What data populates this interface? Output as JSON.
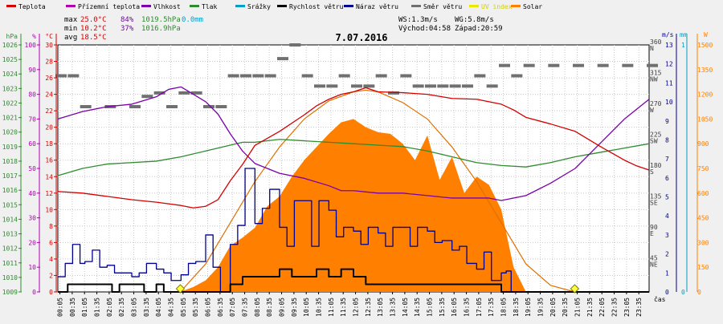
{
  "chart_data": {
    "type": "line",
    "title": "7.07.2016",
    "legend": [
      {
        "label": "Teplota",
        "color": "#d40000"
      },
      {
        "label": "Přízemní teplota",
        "color": "#b000b0"
      },
      {
        "label": "Vlhkost",
        "color": "#7a00aa"
      },
      {
        "label": "Tlak",
        "color": "#2e8b2e"
      },
      {
        "label": "Srážky",
        "color": "#00a0c8"
      },
      {
        "label": "Rychlost větru",
        "color": "#000000"
      },
      {
        "label": "Náraz větru",
        "color": "#000090"
      },
      {
        "label": "Směr větru",
        "color": "#707070"
      },
      {
        "label": "UV index",
        "color": "#e8e800"
      },
      {
        "label": "Solar",
        "color": "#ff8000"
      }
    ],
    "stats": {
      "max_label": "max",
      "max_temp": "25.0°C",
      "max_hum": "84%",
      "max_press": "1019.5hPa",
      "rain": "0.0mm",
      "min_label": "min",
      "min_temp": "10.2°C",
      "min_hum": "37%",
      "min_press": "1016.9hPa",
      "avg_label": "avg",
      "avg_temp": "18.5°C",
      "ws": "WS:1.3m/s",
      "wg": "WG:5.8m/s",
      "sunrise": "Východ:04:58",
      "sunset": "Západ:20:59"
    },
    "axes": {
      "hpa_unit": "hPa",
      "pct_unit": "%",
      "c_unit": "°C",
      "ms_unit": "m/s",
      "mm_unit": "mm",
      "w_unit": "W",
      "x_unit": "čas",
      "hpa_ticks": [
        "1009",
        "1010",
        "1011",
        "1012",
        "1013",
        "1014",
        "1015",
        "1016",
        "1017",
        "1018",
        "1019",
        "1020",
        "1021",
        "1022",
        "1023",
        "1024",
        "1025",
        "1026"
      ],
      "pct_ticks": [
        "0",
        "10",
        "20",
        "30",
        "40",
        "50",
        "60",
        "70",
        "80",
        "90",
        "100"
      ],
      "c_ticks": [
        "0",
        "2",
        "4",
        "6",
        "8",
        "10",
        "12",
        "14",
        "16",
        "18",
        "20",
        "22",
        "24",
        "26",
        "28",
        "30"
      ],
      "dir_ticks": [
        {
          "deg": "45",
          "name": "NE",
          "v": 45
        },
        {
          "deg": "90",
          "name": "E",
          "v": 90
        },
        {
          "deg": "135",
          "name": "SE",
          "v": 135
        },
        {
          "deg": "180",
          "name": "S",
          "v": 180
        },
        {
          "deg": "225",
          "name": "SW",
          "v": 225
        },
        {
          "deg": "270",
          "name": "W",
          "v": 270
        },
        {
          "deg": "315",
          "name": "NW",
          "v": 315
        },
        {
          "deg": "360",
          "name": "N",
          "v": 360
        }
      ],
      "ms_ticks": [
        "0",
        "1",
        "2",
        "3",
        "4",
        "5",
        "6",
        "7",
        "8",
        "9",
        "10",
        "11",
        "12",
        "13"
      ],
      "mm_ticks": [
        "0",
        "1"
      ],
      "w_ticks": [
        "0",
        "150",
        "300",
        "450",
        "600",
        "750",
        "900",
        "1050",
        "1200",
        "1350",
        "1500"
      ],
      "x_ticks": [
        "00:05",
        "00:35",
        "01:05",
        "01:35",
        "02:05",
        "02:35",
        "03:05",
        "03:35",
        "04:05",
        "04:35",
        "05:05",
        "05:35",
        "06:05",
        "06:35",
        "07:05",
        "07:35",
        "08:05",
        "08:35",
        "09:05",
        "09:35",
        "10:05",
        "10:35",
        "11:05",
        "11:35",
        "12:05",
        "12:35",
        "13:05",
        "13:35",
        "14:05",
        "14:35",
        "15:05",
        "15:35",
        "16:05",
        "16:35",
        "17:05",
        "17:35",
        "18:05",
        "18:35",
        "19:05",
        "19:35",
        "20:05",
        "20:35",
        "21:05",
        "21:35",
        "22:05",
        "22:35",
        "23:05",
        "23:35"
      ]
    },
    "series": {
      "temperature": {
        "name": "Teplota",
        "color": "#d40000",
        "x": [
          0,
          1,
          2,
          3,
          4,
          5,
          5.5,
          6,
          6.5,
          7,
          7.5,
          8,
          9,
          10,
          10.5,
          11,
          11.5,
          12,
          12.5,
          13,
          14,
          15,
          16,
          17,
          18,
          18.5,
          19,
          20,
          21,
          22,
          23,
          23.5,
          24
        ],
        "y": [
          12.2,
          12,
          11.6,
          11.2,
          10.9,
          10.5,
          10.2,
          10.4,
          11.2,
          13.5,
          15.5,
          17.8,
          19.5,
          21.5,
          22.6,
          23.4,
          24,
          24.3,
          24.8,
          24.3,
          24.2,
          24,
          23.5,
          23.4,
          22.8,
          22.1,
          21.2,
          20.4,
          19.5,
          17.7,
          16,
          15.3,
          14.8
        ]
      },
      "humidity": {
        "name": "Vlhkost",
        "color": "#7a00aa",
        "x": [
          0,
          1,
          2,
          3,
          4,
          4.5,
          5,
          5.5,
          6,
          6.5,
          7,
          7.5,
          8,
          9,
          10,
          11,
          11.5,
          12,
          13,
          14,
          15,
          16,
          17,
          17.5,
          18,
          19,
          20,
          21,
          22,
          23,
          24
        ],
        "y": [
          70,
          73,
          75,
          76,
          79,
          82,
          83,
          80,
          77,
          72,
          64,
          57,
          52,
          48,
          46,
          43,
          41,
          41,
          40,
          40,
          39,
          38,
          38,
          38,
          37,
          39,
          44,
          50,
          60,
          70,
          78
        ]
      },
      "pressure": {
        "name": "Tlak",
        "color": "#2e8b2e",
        "x": [
          0,
          1,
          2,
          3,
          4,
          5,
          6,
          7,
          7.5,
          8,
          9,
          10,
          11,
          12,
          13,
          14,
          15,
          16,
          17,
          18,
          19,
          20,
          21,
          22,
          23,
          24
        ],
        "y": [
          1017,
          1017.5,
          1017.8,
          1017.9,
          1018,
          1018.3,
          1018.7,
          1019.1,
          1019.3,
          1019.3,
          1019.5,
          1019.4,
          1019.3,
          1019.2,
          1019.1,
          1019,
          1018.7,
          1018.3,
          1017.9,
          1017.7,
          1017.6,
          1017.9,
          1018.3,
          1018.6,
          1018.9,
          1019.2
        ]
      },
      "wind_speed": {
        "name": "Rychlost větru",
        "color": "#000000",
        "x": [
          0,
          0.4,
          0.8,
          1,
          1.7,
          2.2,
          2.5,
          3,
          3.5,
          4,
          4.3,
          4.5,
          5,
          5.5,
          6,
          6.5,
          7,
          7.5,
          8,
          8.5,
          9,
          9.5,
          10,
          10.5,
          11,
          11.5,
          12,
          12.5,
          13,
          13.5,
          14,
          14.5,
          15,
          15.5,
          16,
          16.5,
          17,
          17.5,
          18,
          18.5,
          19,
          24
        ],
        "y": [
          0,
          0.4,
          0.4,
          0.4,
          0.4,
          0,
          0.4,
          0.4,
          0,
          0.4,
          0,
          0,
          0,
          0,
          0,
          0,
          0.4,
          0.8,
          0.8,
          0.8,
          1.2,
          0.8,
          0.8,
          1.2,
          0.8,
          1.2,
          0.8,
          0.4,
          0.4,
          0.4,
          0.4,
          0.4,
          0.4,
          0.4,
          0.4,
          0.4,
          0.4,
          0.4,
          0,
          0,
          0,
          0
        ]
      },
      "wind_gust": {
        "name": "Náraz větru",
        "color": "#000090",
        "x": [
          0,
          0.3,
          0.6,
          0.9,
          1.1,
          1.4,
          1.7,
          2,
          2.3,
          2.6,
          3,
          3.3,
          3.6,
          4,
          4.3,
          4.6,
          5,
          5.3,
          5.6,
          6,
          6.3,
          6.6,
          7,
          7.3,
          7.6,
          8,
          8.3,
          8.6,
          9,
          9.3,
          9.6,
          10,
          10.3,
          10.6,
          11,
          11.3,
          11.6,
          12,
          12.3,
          12.6,
          13,
          13.3,
          13.6,
          14,
          14.3,
          14.6,
          15,
          15.3,
          15.6,
          16,
          16.3,
          16.6,
          17,
          17.3,
          17.6,
          18,
          18.2,
          18.4,
          24
        ],
        "y": [
          0.8,
          1.5,
          2.5,
          1.5,
          1.6,
          2.2,
          1.3,
          1.4,
          1,
          1,
          0.8,
          1,
          1.5,
          1.2,
          1,
          0.6,
          0.9,
          1.5,
          1.6,
          3,
          1.3,
          0,
          2.5,
          3.5,
          6.5,
          3.6,
          4.4,
          5.4,
          3.4,
          2.4,
          4.8,
          4.8,
          2.4,
          4.8,
          4.3,
          2.9,
          3.4,
          3.2,
          2.5,
          3.4,
          3.1,
          2.4,
          3.4,
          3.4,
          2.4,
          3.4,
          3.2,
          2.6,
          2.7,
          2.2,
          2.4,
          1.5,
          1.2,
          2.1,
          0.6,
          1,
          1.1,
          0,
          0
        ]
      },
      "wind_direction": {
        "name": "Směr větru",
        "color": "#707070",
        "x": [
          0,
          0.5,
          1,
          2,
          3,
          3.5,
          4,
          4.5,
          5,
          5.5,
          6,
          6.5,
          7,
          7.5,
          8,
          8.5,
          9,
          9.5,
          10,
          10.5,
          11,
          11.5,
          12,
          12.5,
          13,
          13.5,
          14,
          14.5,
          15,
          15.5,
          16,
          16.5,
          17,
          17.5,
          18,
          18.5,
          19,
          20,
          21,
          22,
          23,
          24
        ],
        "y": [
          315,
          315,
          270,
          270,
          270,
          285,
          290,
          270,
          290,
          290,
          270,
          270,
          315,
          315,
          315,
          315,
          340,
          360,
          315,
          300,
          300,
          315,
          300,
          300,
          315,
          290,
          315,
          300,
          300,
          300,
          300,
          300,
          315,
          300,
          330,
          315,
          330,
          330,
          330,
          330,
          330,
          330
        ]
      },
      "solar": {
        "name": "Solar",
        "color": "#ff8000",
        "x": [
          0,
          4.95,
          5.5,
          6,
          6.5,
          7,
          7.5,
          8,
          8.5,
          9,
          9.5,
          10,
          10.5,
          11,
          11.5,
          12,
          12.5,
          13,
          13.5,
          14,
          14.5,
          15,
          15.5,
          16,
          16.5,
          17,
          17.5,
          18,
          18.5,
          19,
          24
        ],
        "y": [
          0,
          0,
          30,
          70,
          150,
          280,
          330,
          390,
          520,
          580,
          700,
          800,
          880,
          960,
          1030,
          1050,
          1000,
          970,
          960,
          900,
          800,
          950,
          680,
          820,
          600,
          700,
          650,
          500,
          150,
          0,
          0
        ]
      },
      "solar_theoretical": {
        "name": "Solar",
        "color": "#ff8000",
        "x": [
          4.97,
          6,
          7,
          8,
          9,
          10,
          11,
          12,
          12.5,
          13,
          14,
          15,
          16,
          17,
          18,
          19,
          20,
          20.98
        ],
        "y": [
          0,
          170,
          420,
          670,
          880,
          1050,
          1160,
          1215,
          1225,
          1215,
          1150,
          1050,
          880,
          670,
          420,
          170,
          40,
          0
        ]
      },
      "uv_markers": [
        {
          "x": 4.97,
          "y": 0
        },
        {
          "x": 20.98,
          "y": 0
        }
      ]
    }
  }
}
